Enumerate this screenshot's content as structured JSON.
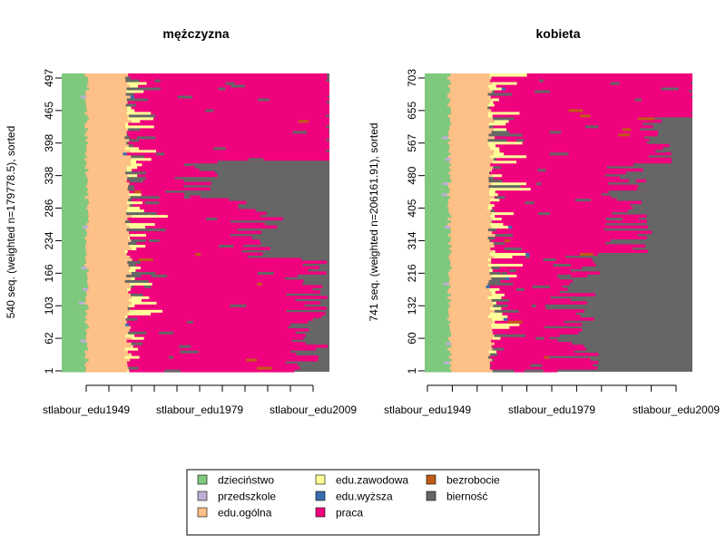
{
  "chart_data": [
    {
      "type": "sequence_index_plot",
      "title": "mężczyzna",
      "ylabel": "540 seq. (weighted n=179778.5), sorted",
      "n_sequences": 540,
      "ytick_labels": [
        "1",
        "62",
        "103",
        "166",
        "234",
        "286",
        "338",
        "398",
        "465",
        "497"
      ],
      "xtick_labels": [
        "stlabour_edu1949",
        "stlabour_edu1979",
        "stlabour_edu2009"
      ],
      "x_range": [
        1949,
        2019
      ],
      "profiles": {
        "childhood_end": 1955.5,
        "general_edu_end": 1966,
        "work_entry_range": [
          1966,
          1978
        ],
        "retire_bands": [
          {
            "share": 0.38,
            "from": 2007,
            "to": 2019
          },
          {
            "share": 0.2,
            "from": 1992,
            "to": 2007
          },
          {
            "share": 0.12,
            "from": 1975,
            "to": 1992
          },
          {
            "share": 0.3,
            "from": 2018,
            "to": 2021
          }
        ]
      }
    },
    {
      "type": "sequence_index_plot",
      "title": "kobieta",
      "ylabel": "741 seq. (weighted n=206161.91), sorted",
      "n_sequences": 741,
      "ytick_labels": [
        "1",
        "60",
        "132",
        "216",
        "314",
        "405",
        "480",
        "567",
        "655",
        "703"
      ],
      "xtick_labels": [
        "stlabour_edu1949",
        "stlabour_edu1979",
        "stlabour_edu2009"
      ],
      "x_range": [
        1949,
        2019
      ],
      "profiles": {
        "childhood_end": 1955.5,
        "general_edu_end": 1966,
        "work_entry_range": [
          1966,
          1978
        ],
        "retire_bands": [
          {
            "share": 0.4,
            "from": 1980,
            "to": 1995
          },
          {
            "share": 0.3,
            "from": 1995,
            "to": 2010
          },
          {
            "share": 0.15,
            "from": 2005,
            "to": 2014
          },
          {
            "share": 0.15,
            "from": 2018,
            "to": 2021
          }
        ]
      }
    }
  ],
  "legend": {
    "items": [
      {
        "label": "dzieciństwo",
        "color": "#7fc97f"
      },
      {
        "label": "przedszkole",
        "color": "#beaed4"
      },
      {
        "label": "edu.ogólna",
        "color": "#fdc086"
      },
      {
        "label": "edu.zawodowa",
        "color": "#ffff99"
      },
      {
        "label": "edu.wyższa",
        "color": "#386cb0"
      },
      {
        "label": "praca",
        "color": "#f0027f"
      },
      {
        "label": "bezrobocie",
        "color": "#bf5b17"
      },
      {
        "label": "bierność",
        "color": "#666666"
      }
    ]
  }
}
